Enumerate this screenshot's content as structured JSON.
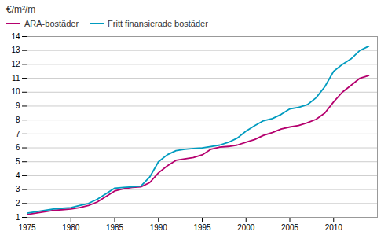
{
  "chart_data": {
    "type": "line",
    "title": "€/m²/m",
    "x": [
      1975,
      1976,
      1977,
      1978,
      1979,
      1980,
      1981,
      1982,
      1983,
      1984,
      1985,
      1986,
      1987,
      1988,
      1989,
      1990,
      1991,
      1992,
      1993,
      1994,
      1995,
      1996,
      1997,
      1998,
      1999,
      2000,
      2001,
      2002,
      2003,
      2004,
      2005,
      2006,
      2007,
      2008,
      2009,
      2010,
      2011,
      2012,
      2013,
      2014
    ],
    "series": [
      {
        "name": "ARA-bostäder",
        "color": "#b5006e",
        "values": [
          1.2,
          1.3,
          1.4,
          1.5,
          1.55,
          1.6,
          1.7,
          1.85,
          2.1,
          2.5,
          2.9,
          3.05,
          3.15,
          3.2,
          3.5,
          4.2,
          4.7,
          5.1,
          5.2,
          5.3,
          5.5,
          5.9,
          6.05,
          6.1,
          6.2,
          6.4,
          6.6,
          6.9,
          7.1,
          7.35,
          7.5,
          7.6,
          7.8,
          8.05,
          8.5,
          9.3,
          10.0,
          10.5,
          11.0,
          11.2
        ]
      },
      {
        "name": "Fritt finansierade bostäder",
        "color": "#009bbf",
        "values": [
          1.3,
          1.4,
          1.5,
          1.6,
          1.65,
          1.7,
          1.85,
          2.0,
          2.3,
          2.7,
          3.1,
          3.15,
          3.2,
          3.25,
          3.9,
          5.0,
          5.5,
          5.8,
          5.9,
          5.95,
          6.0,
          6.1,
          6.2,
          6.4,
          6.7,
          7.2,
          7.6,
          7.95,
          8.1,
          8.4,
          8.8,
          8.9,
          9.1,
          9.6,
          10.4,
          11.5,
          12.0,
          12.4,
          13.0,
          13.3
        ]
      }
    ],
    "xlim": [
      1975,
      2015
    ],
    "xticks": [
      1975,
      1980,
      1985,
      1990,
      1995,
      2000,
      2005,
      2010
    ],
    "ylim": [
      1,
      14
    ],
    "yticks": [
      1,
      2,
      3,
      4,
      5,
      6,
      7,
      8,
      9,
      10,
      11,
      12,
      13,
      14
    ],
    "grid": true,
    "legend": "upper left"
  }
}
